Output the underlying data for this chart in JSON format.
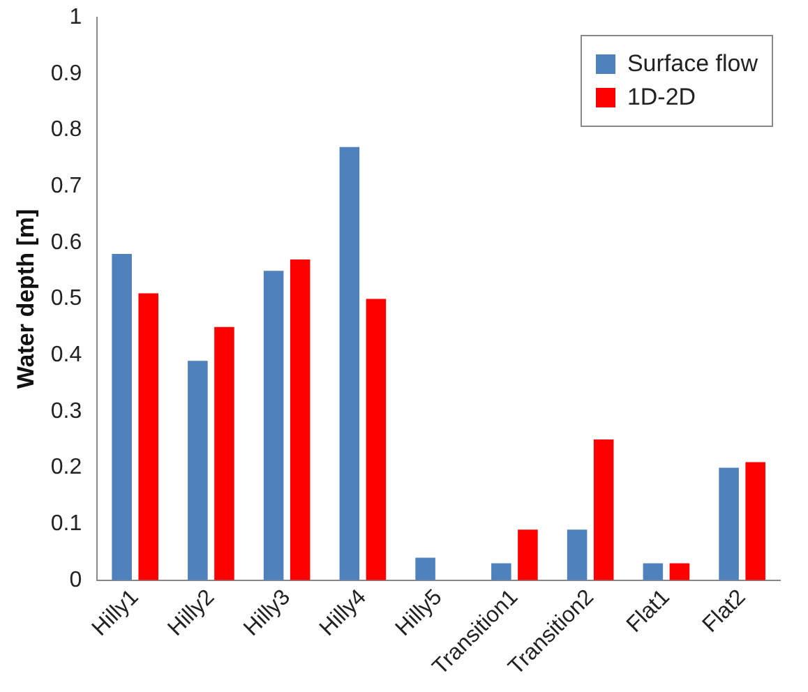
{
  "chart_data": {
    "type": "bar",
    "ylabel": "Water depth [m]",
    "categories": [
      "Hilly1",
      "Hilly2",
      "Hilly3",
      "Hilly4",
      "Hilly5",
      "Transition1",
      "Transition2",
      "Flat1",
      "Flat2"
    ],
    "series": [
      {
        "name": "Surface flow",
        "color": "#4f81bd",
        "values": [
          0.58,
          0.39,
          0.55,
          0.77,
          0.04,
          0.03,
          0.09,
          0.03,
          0.2
        ]
      },
      {
        "name": "1D-2D",
        "color": "#ff0000",
        "values": [
          0.51,
          0.45,
          0.57,
          0.5,
          0,
          0.09,
          0.25,
          0.03,
          0.21
        ]
      }
    ],
    "ylim": [
      0,
      1
    ],
    "yticks": [
      0,
      0.1,
      0.2,
      0.3,
      0.4,
      0.5,
      0.6,
      0.7,
      0.8,
      0.9,
      1
    ],
    "grid": false,
    "legend": "top right"
  }
}
